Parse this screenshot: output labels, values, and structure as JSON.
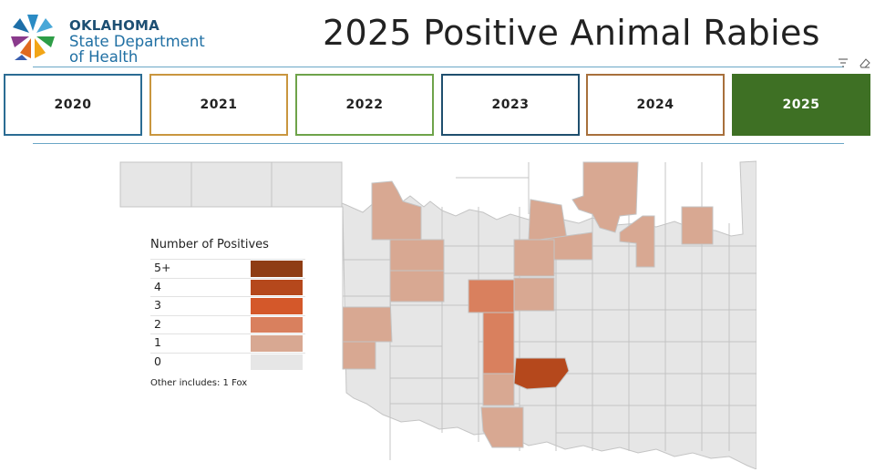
{
  "header": {
    "logo_line1": "OKLAHOMA",
    "logo_line2": "State Department",
    "logo_line3": "of Health",
    "title": "2025 Positive Animal Rabies",
    "icons": [
      "filter-icon",
      "eraser-icon"
    ]
  },
  "year_buttons": [
    {
      "label": "2020",
      "color": "#2b6c93",
      "selected": false
    },
    {
      "label": "2021",
      "color": "#c9963f",
      "selected": false
    },
    {
      "label": "2022",
      "color": "#6ea34a",
      "selected": false
    },
    {
      "label": "2023",
      "color": "#1f4f6e",
      "selected": false
    },
    {
      "label": "2024",
      "color": "#a8703c",
      "selected": false
    },
    {
      "label": "2025",
      "color": "#3e7024",
      "selected": true
    }
  ],
  "legend": {
    "title": "Number of Positives",
    "items": [
      {
        "label": "5+",
        "color": "#8f3d14"
      },
      {
        "label": "4",
        "color": "#b5481c"
      },
      {
        "label": "3",
        "color": "#d4582a"
      },
      {
        "label": "2",
        "color": "#d9805e"
      },
      {
        "label": "1",
        "color": "#d8a892"
      },
      {
        "label": "0",
        "color": "#e6e6e6"
      }
    ],
    "other_note": "Other includes:  1 Fox"
  },
  "map": {
    "base_color": "#e6e6e6",
    "border_color": "#c4c4c4",
    "highlighted_counties": [
      {
        "positives": 1
      },
      {
        "positives": 1
      },
      {
        "positives": 1
      },
      {
        "positives": 1
      },
      {
        "positives": 1
      },
      {
        "positives": 1
      },
      {
        "positives": 1
      },
      {
        "positives": 1
      },
      {
        "positives": 1
      },
      {
        "positives": 1
      },
      {
        "positives": 1
      },
      {
        "positives": 2
      },
      {
        "positives": 2
      },
      {
        "positives": 1
      },
      {
        "positives": 1
      },
      {
        "positives": 4
      },
      {
        "positives": 1
      }
    ]
  }
}
